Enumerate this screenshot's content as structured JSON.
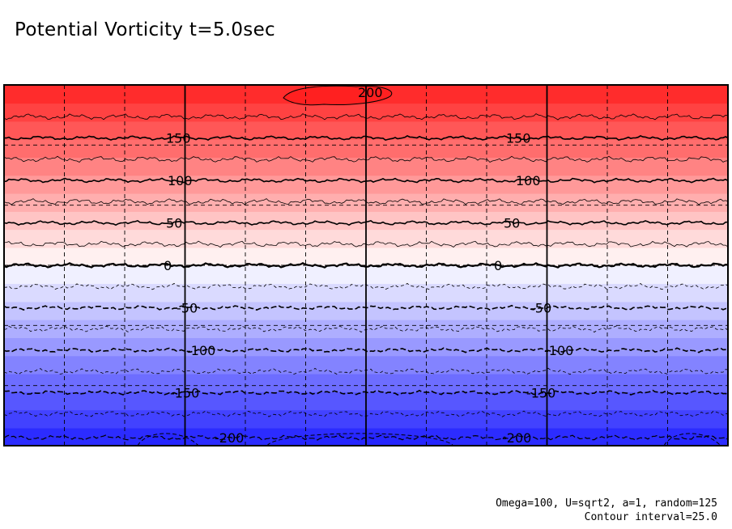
{
  "chart_data": {
    "type": "contour",
    "title": "Potential Vorticity t=5.0sec",
    "footnote_params": "Omega=100, U=sqrt2, a=1, random=125",
    "footnote_interval": "Contour interval=25.0",
    "value_range": [
      -212.5,
      212.5
    ],
    "contour_interval": 25.0,
    "levels": [
      -200,
      -175,
      -150,
      -125,
      -100,
      -75,
      -50,
      -25,
      0,
      25,
      50,
      75,
      100,
      125,
      150,
      175,
      200
    ],
    "band_colors": [
      "#2c2cff",
      "#4242ff",
      "#5757ff",
      "#6d6dff",
      "#8383ff",
      "#9999ff",
      "#aeaeff",
      "#c4c4ff",
      "#dadaff",
      "#f0f0ff",
      "#fff0f0",
      "#ffdada",
      "#ffc4c4",
      "#ffaeae",
      "#ff9999",
      "#ff8383",
      "#ff6d6d",
      "#ff5757",
      "#ff4242",
      "#ff2c2c"
    ],
    "labeled_contours": [
      {
        "level": 200,
        "label": "200"
      },
      {
        "level": 150,
        "label": "150"
      },
      {
        "level": 100,
        "label": "100"
      },
      {
        "level": 50,
        "label": "50"
      },
      {
        "level": 0,
        "label": "0"
      },
      {
        "level": -50,
        "label": "-50"
      },
      {
        "level": -100,
        "label": "-100"
      },
      {
        "level": -150,
        "label": "-150"
      },
      {
        "level": -200,
        "label": "-200"
      }
    ],
    "grid": {
      "dashed_vertical": true,
      "dashed_horizontal": true,
      "solid_vertical_divisions": 4
    },
    "xlabel": "",
    "ylabel": ""
  }
}
